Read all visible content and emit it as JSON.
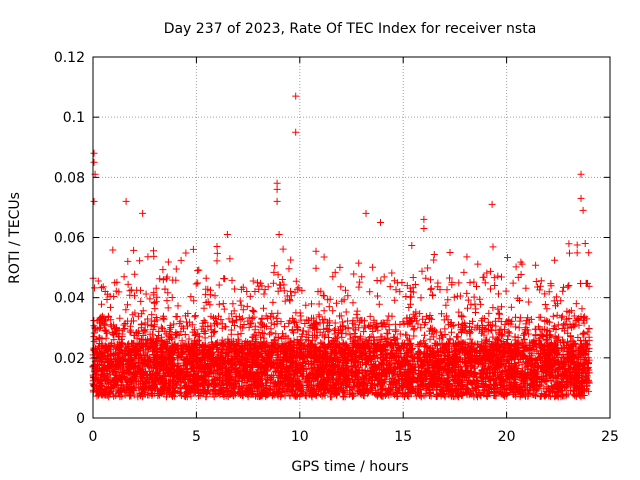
{
  "chart_data": {
    "type": "scatter",
    "title": "Day 237 of 2023, Rate Of TEC Index for receiver nsta",
    "xlabel": "GPS time / hours",
    "ylabel": "ROTI / TECUs",
    "xlim": [
      0,
      25
    ],
    "ylim": [
      0,
      0.12
    ],
    "x_ticks": [
      0,
      5,
      10,
      15,
      20,
      25
    ],
    "x_tick_labels": [
      "0",
      "5",
      "10",
      "15",
      "20",
      "25"
    ],
    "y_ticks": [
      0,
      0.02,
      0.04,
      0.06,
      0.08,
      0.1,
      0.12
    ],
    "y_tick_labels": [
      "0",
      "0.02",
      "0.04",
      "0.06",
      "0.08",
      "0.1",
      "0.12"
    ],
    "grid": true,
    "marker": "+",
    "marker_color": "#ff0000",
    "x_range_of_data": [
      0,
      24
    ],
    "y_range_of_data": [
      0.005,
      0.107
    ],
    "notable_points": [
      {
        "x": 0.05,
        "y": 0.088
      },
      {
        "x": 0.05,
        "y": 0.085
      },
      {
        "x": 0.1,
        "y": 0.081
      },
      {
        "x": 0.05,
        "y": 0.072
      },
      {
        "x": 1.6,
        "y": 0.072
      },
      {
        "x": 2.4,
        "y": 0.068
      },
      {
        "x": 6.5,
        "y": 0.061
      },
      {
        "x": 8.9,
        "y": 0.078
      },
      {
        "x": 8.9,
        "y": 0.076
      },
      {
        "x": 8.9,
        "y": 0.072
      },
      {
        "x": 9.0,
        "y": 0.061
      },
      {
        "x": 9.8,
        "y": 0.107
      },
      {
        "x": 9.8,
        "y": 0.095
      },
      {
        "x": 13.2,
        "y": 0.068
      },
      {
        "x": 13.9,
        "y": 0.065
      },
      {
        "x": 16.0,
        "y": 0.066
      },
      {
        "x": 16.0,
        "y": 0.063
      },
      {
        "x": 19.3,
        "y": 0.071
      },
      {
        "x": 23.6,
        "y": 0.081
      },
      {
        "x": 23.6,
        "y": 0.073
      },
      {
        "x": 23.7,
        "y": 0.069
      },
      {
        "x": 23.8,
        "y": 0.058
      }
    ]
  }
}
